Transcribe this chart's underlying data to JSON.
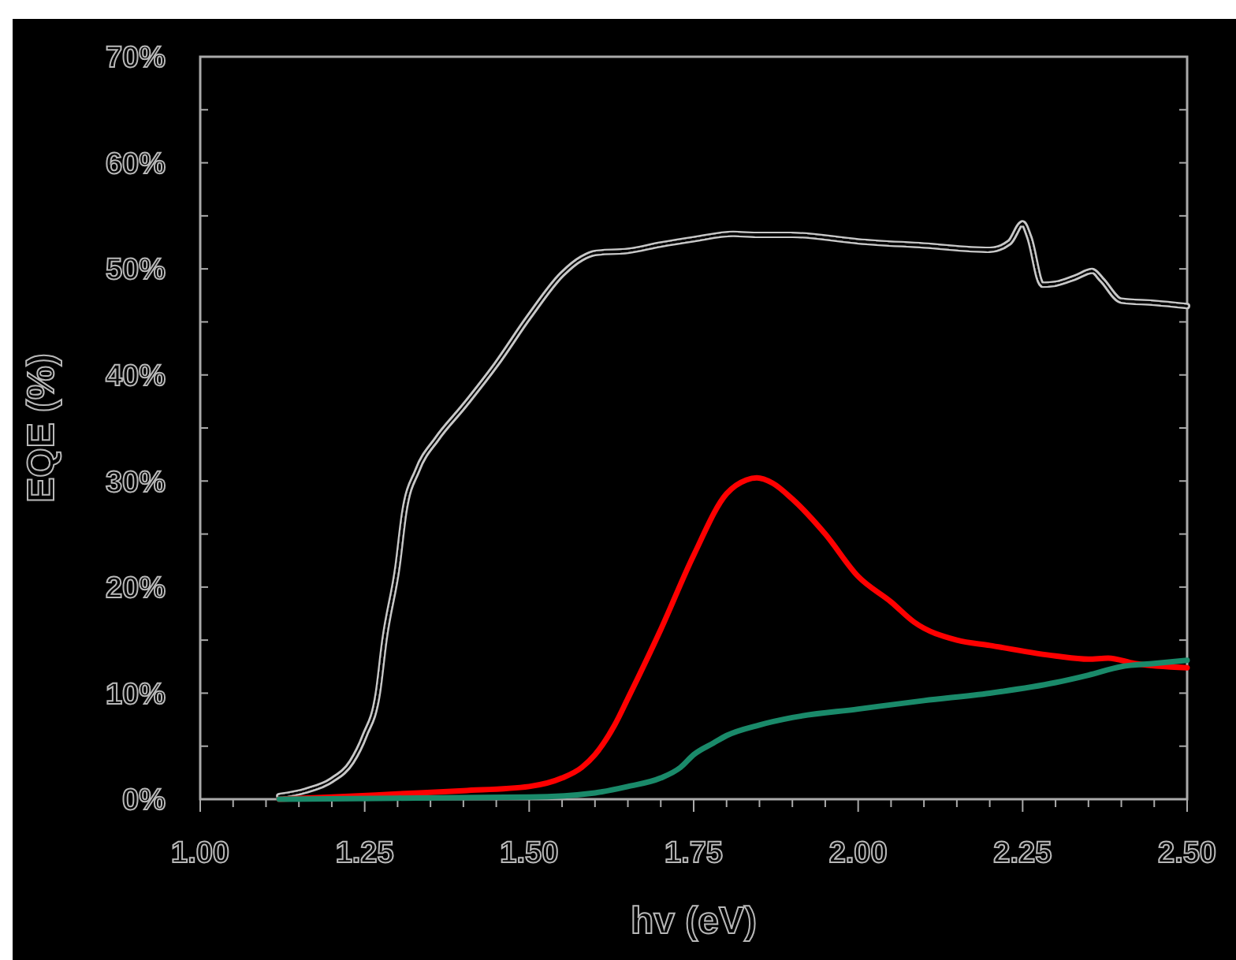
{
  "chart_data": {
    "type": "line",
    "xlabel": "hv (eV)",
    "ylabel": "EQE (%)",
    "xlim": [
      1,
      2.5
    ],
    "ylim": [
      0,
      70
    ],
    "xticks": [
      {
        "value": 1,
        "label": "1.00"
      },
      {
        "value": 1.05,
        "label": null
      },
      {
        "value": 1.1,
        "label": null
      },
      {
        "value": 1.15,
        "label": null
      },
      {
        "value": 1.2,
        "label": null
      },
      {
        "value": 1.25,
        "label": "1.25"
      },
      {
        "value": 1.3,
        "label": null
      },
      {
        "value": 1.35,
        "label": null
      },
      {
        "value": 1.4,
        "label": null
      },
      {
        "value": 1.45,
        "label": null
      },
      {
        "value": 1.5,
        "label": "1.50"
      },
      {
        "value": 1.55,
        "label": null
      },
      {
        "value": 1.6,
        "label": null
      },
      {
        "value": 1.65,
        "label": null
      },
      {
        "value": 1.7,
        "label": null
      },
      {
        "value": 1.75,
        "label": "1.75"
      },
      {
        "value": 1.8,
        "label": null
      },
      {
        "value": 1.85,
        "label": null
      },
      {
        "value": 1.9,
        "label": null
      },
      {
        "value": 1.95,
        "label": null
      },
      {
        "value": 2,
        "label": "2.00"
      },
      {
        "value": 2.05,
        "label": null
      },
      {
        "value": 2.1,
        "label": null
      },
      {
        "value": 2.15,
        "label": null
      },
      {
        "value": 2.2,
        "label": null
      },
      {
        "value": 2.25,
        "label": "2.25"
      },
      {
        "value": 2.3,
        "label": null
      },
      {
        "value": 2.35,
        "label": null
      },
      {
        "value": 2.4,
        "label": null
      },
      {
        "value": 2.45,
        "label": null
      },
      {
        "value": 2.5,
        "label": "2.50"
      }
    ],
    "yticks": [
      {
        "value": 0,
        "label": "0%"
      },
      {
        "value": 5,
        "label": null
      },
      {
        "value": 10,
        "label": "10%"
      },
      {
        "value": 15,
        "label": null
      },
      {
        "value": 20,
        "label": "20%"
      },
      {
        "value": 25,
        "label": null
      },
      {
        "value": 30,
        "label": "30%"
      },
      {
        "value": 35,
        "label": null
      },
      {
        "value": 40,
        "label": "40%"
      },
      {
        "value": 45,
        "label": null
      },
      {
        "value": 50,
        "label": "50%"
      },
      {
        "value": 55,
        "label": null
      },
      {
        "value": 60,
        "label": "60%"
      },
      {
        "value": 65,
        "label": null
      },
      {
        "value": 70,
        "label": "70%"
      }
    ],
    "grid": false,
    "marker": "none",
    "line_style": "solid",
    "series": [
      {
        "color": "#c8c8c8",
        "x": [
          1.12,
          1.16,
          1.2,
          1.23,
          1.25,
          1.27,
          1.28,
          1.3,
          1.31,
          1.33,
          1.36,
          1.4,
          1.45,
          1.5,
          1.55,
          1.58,
          1.6,
          1.65,
          1.7,
          1.75,
          1.81,
          1.85,
          1.9,
          2.0,
          2.1,
          2.2,
          2.23,
          2.25,
          2.26,
          2.28,
          2.3,
          2.33,
          2.356,
          2.37,
          2.4,
          2.45,
          2.5
        ],
        "values": [
          0.3,
          0.8,
          1.8,
          3.5,
          6,
          10,
          15,
          22,
          27,
          31,
          34,
          37,
          41,
          45.5,
          49.5,
          51,
          51.5,
          51.7,
          52.3,
          52.8,
          53.3,
          53.2,
          53.2,
          52.6,
          52.2,
          51.8,
          52.5,
          54.3,
          53,
          48.5,
          48.6,
          49.2,
          49.8,
          49,
          47,
          46.8,
          46.5
        ]
      },
      {
        "color": "#ff0000",
        "x": [
          1.12,
          1.2,
          1.3,
          1.4,
          1.5,
          1.55,
          1.58,
          1.6,
          1.63,
          1.65,
          1.7,
          1.75,
          1.8,
          1.83,
          1.846,
          1.87,
          1.9,
          1.95,
          2.0,
          2.05,
          2.085,
          2.15,
          2.2,
          2.3,
          2.35,
          2.38,
          2.42,
          2.5
        ],
        "values": [
          0,
          0.2,
          0.5,
          0.8,
          1.2,
          2,
          3,
          4.2,
          7,
          9.5,
          16,
          23,
          28.8,
          30.1,
          30.3,
          29.8,
          28.3,
          25,
          21,
          18.6,
          16.7,
          15,
          14.5,
          13.5,
          13.2,
          13.3,
          12.8,
          12.4
        ]
      },
      {
        "color": "#1a8a6a",
        "x": [
          1.12,
          1.3,
          1.5,
          1.6,
          1.65,
          1.7,
          1.73,
          1.75,
          1.78,
          1.8,
          1.85,
          1.9,
          2.0,
          2.1,
          2.2,
          2.3,
          2.35,
          2.4,
          2.45,
          2.5
        ],
        "values": [
          0,
          0.1,
          0.2,
          0.6,
          1.2,
          2,
          3,
          4.2,
          5.3,
          6,
          7,
          7.7,
          8.5,
          9.3,
          10,
          11,
          11.7,
          12.5,
          12.8,
          13.1
        ]
      }
    ]
  }
}
